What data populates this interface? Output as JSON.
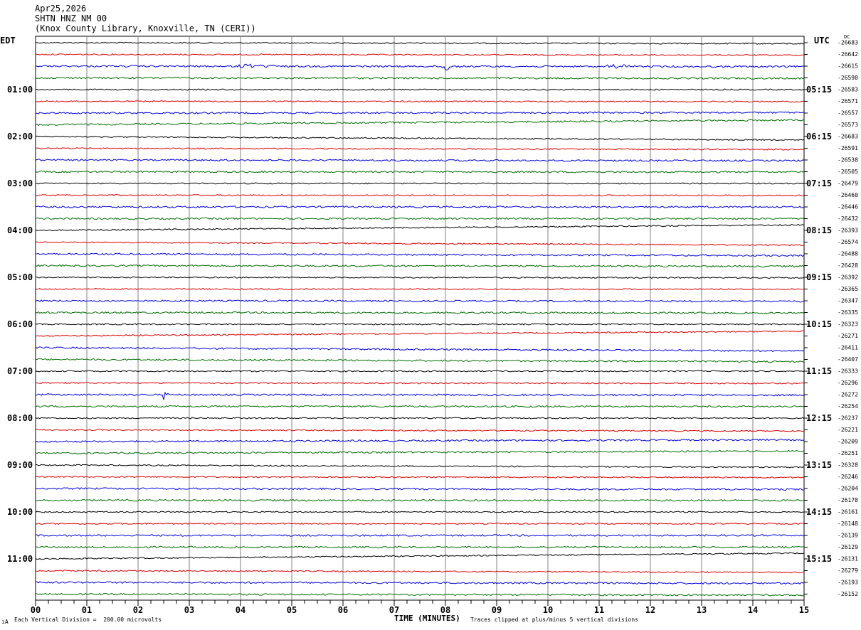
{
  "header": {
    "date": "Apr25,2026",
    "station": "SHTN HNZ NM 00",
    "location": "(Knox County Library, Knoxville, TN (CERI))"
  },
  "left_label": "EDT",
  "right_label": "UTC",
  "dc_label": "DC",
  "footer": {
    "mark": "ıA",
    "left": "Each Vertical Division =  200.00 microvolts",
    "xlabel": "TIME (MINUTES)",
    "right": "Traces clipped at plus/minus 5 vertical divisions"
  },
  "chart_data": {
    "type": "line",
    "title": "",
    "xlabel": "TIME (MINUTES)",
    "ylabel": "",
    "x_ticks": [
      "00",
      "01",
      "02",
      "03",
      "04",
      "05",
      "06",
      "07",
      "08",
      "09",
      "10",
      "11",
      "12",
      "13",
      "14",
      "15"
    ],
    "xlim": [
      0,
      15
    ],
    "grid": true,
    "trace_colors": [
      "#000000",
      "#e00000",
      "#0000e0",
      "#007000"
    ],
    "left_hour_labels": [
      "01:00",
      "02:00",
      "03:00",
      "04:00",
      "05:00",
      "06:00",
      "07:00",
      "08:00",
      "09:00",
      "10:00",
      "11:00"
    ],
    "right_hour_labels": [
      "05:15",
      "06:15",
      "07:15",
      "08:15",
      "09:15",
      "10:15",
      "11:15",
      "12:15",
      "13:15",
      "14:15",
      "15:15"
    ],
    "dc_offsets": [
      "-26683",
      "-26642",
      "-26615",
      "-26598",
      "-26583",
      "-26571",
      "-26557",
      "-26573",
      "-26683",
      "-26591",
      "-26538",
      "-26505",
      "-26479",
      "-26460",
      "-26446",
      "-26432",
      "-26393",
      "-26574",
      "-26488",
      "-26428",
      "-26392",
      "-26365",
      "-26347",
      "-26335",
      "-26323",
      "-26271",
      "-26411",
      "-26407",
      "-26333",
      "-26296",
      "-26272",
      "-26254",
      "-26237",
      "-26221",
      "-26209",
      "-26251",
      "-26328",
      "-26246",
      "-26204",
      "-26178",
      "-26161",
      "-26148",
      "-26139",
      "-26129",
      "-26131",
      "-26279",
      "-26193",
      "-26152"
    ],
    "trace_drift_divisions": [
      0.2,
      0.15,
      0.1,
      0.1,
      0.0,
      0.05,
      -0.1,
      -0.95,
      0.7,
      0.25,
      0.15,
      0.05,
      0.0,
      0.05,
      0.0,
      0.0,
      -1.1,
      0.6,
      0.35,
      0.15,
      0.1,
      0.05,
      0.1,
      0.1,
      0.0,
      -0.95,
      0.65,
      0.45,
      0.0,
      0.1,
      0.1,
      0.05,
      0.0,
      0.25,
      -0.35,
      -0.45,
      0.45,
      0.15,
      0.2,
      0.05,
      0.0,
      0.0,
      0.0,
      0.0,
      -1.15,
      0.35,
      0.2,
      0.2
    ],
    "events": [
      {
        "trace": 2,
        "minute": 8.0,
        "kind": "spike"
      },
      {
        "trace": 2,
        "minute": 4.3,
        "kind": "burst"
      },
      {
        "trace": 2,
        "minute": 11.5,
        "kind": "burst"
      },
      {
        "trace": 30,
        "minute": 2.55,
        "kind": "spike"
      }
    ]
  }
}
